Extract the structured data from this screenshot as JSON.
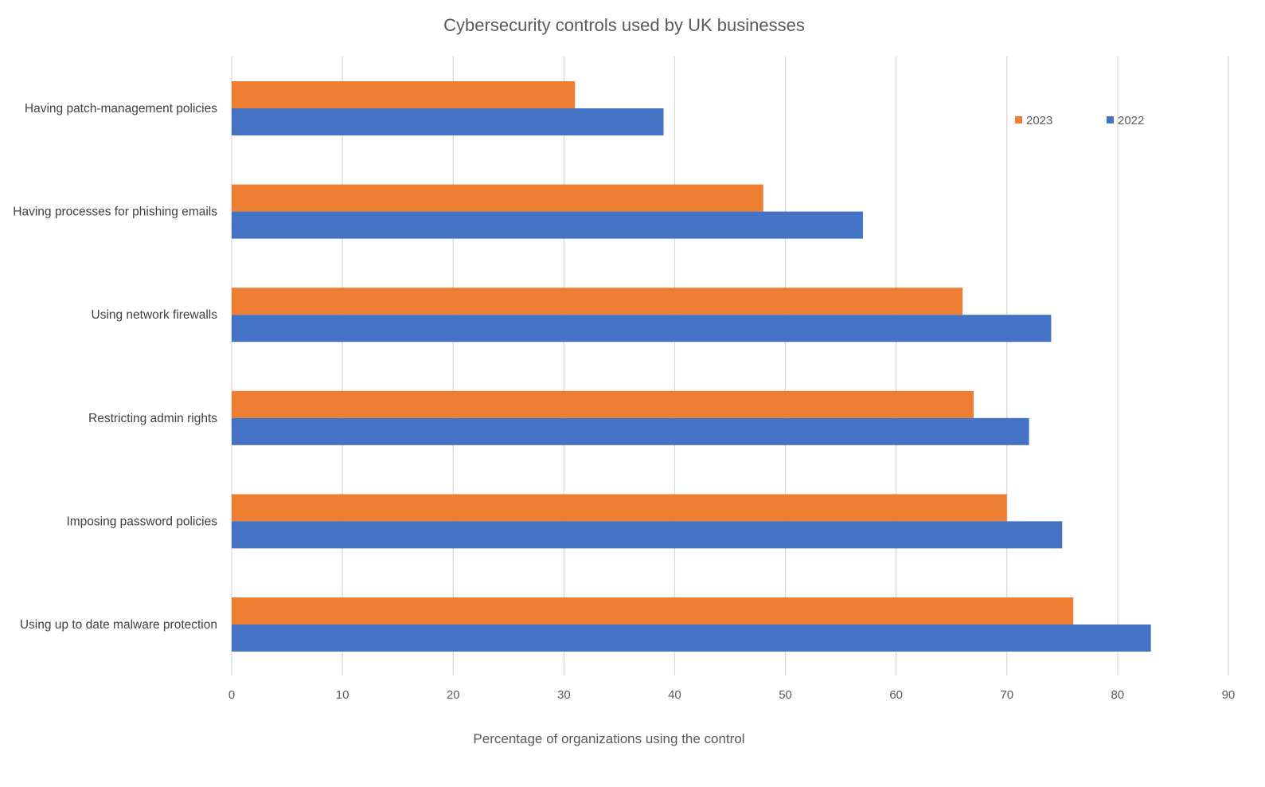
{
  "chart_data": {
    "type": "bar",
    "orientation": "horizontal",
    "title": "Cybersecurity controls used by UK businesses",
    "xlabel": "Percentage of organizations using the control",
    "ylabel": "",
    "categories": [
      "Having patch-management policies",
      "Having processes for phishing emails",
      "Using network firewalls",
      "Restricting admin rights",
      "Imposing password policies",
      "Using up to date malware protection"
    ],
    "series": [
      {
        "name": "2023",
        "color": "#ED7D31",
        "values": [
          31,
          48,
          66,
          67,
          70,
          76
        ]
      },
      {
        "name": "2022",
        "color": "#4472C4",
        "values": [
          39,
          57,
          74,
          72,
          75,
          83
        ]
      }
    ],
    "xlim": [
      0,
      90
    ],
    "xticks": [
      "0",
      "10",
      "20",
      "30",
      "40",
      "50",
      "60",
      "70",
      "80",
      "90"
    ],
    "grid": "vertical",
    "legend_position": "top-right"
  }
}
